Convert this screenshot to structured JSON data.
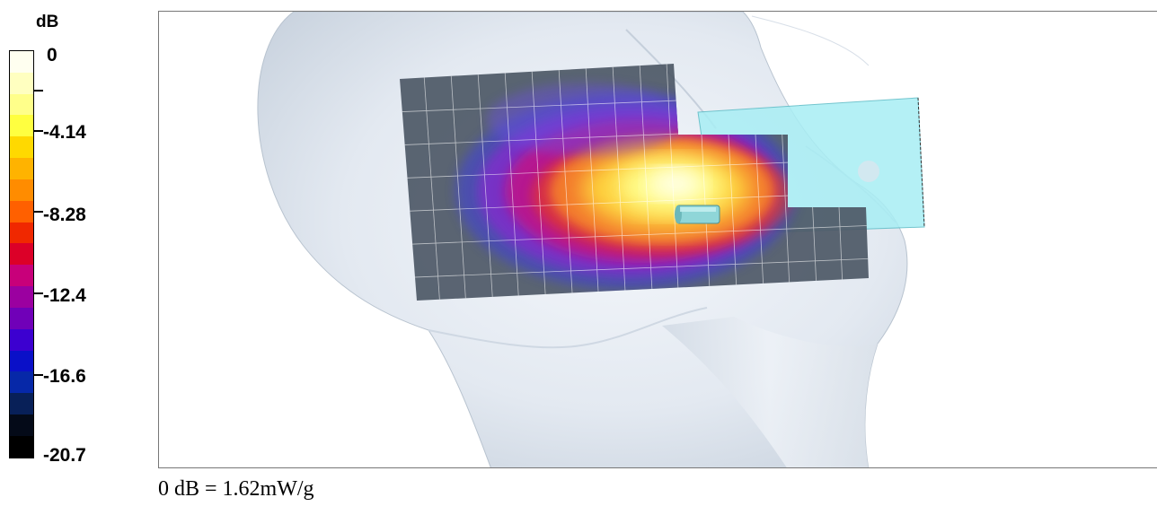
{
  "legend": {
    "unit": "dB",
    "labels": [
      "0",
      "-4.14",
      "-8.28",
      "-12.4",
      "-16.6",
      "-20.7"
    ],
    "colors": [
      "#fffff0",
      "#ffffc0",
      "#ffff8a",
      "#ffff40",
      "#ffd900",
      "#ffb300",
      "#ff8c00",
      "#ff6000",
      "#f02800",
      "#dc0028",
      "#c8007a",
      "#9b00a0",
      "#7000b8",
      "#3c00d0",
      "#0a10c8",
      "#0628a8",
      "#082058",
      "#040a18",
      "#000000"
    ]
  },
  "footer": {
    "reference": "0 dB = 1.62mW/g"
  }
}
